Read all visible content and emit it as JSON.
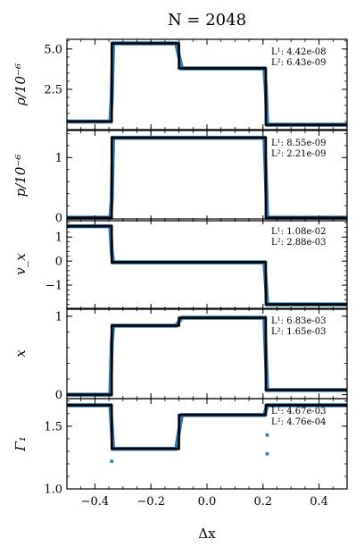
{
  "chart_data": {
    "type": "line",
    "title": "N = 2048",
    "xlabel": "Δx",
    "xlim": [
      -0.5,
      0.5
    ],
    "xticks": [
      -0.4,
      -0.2,
      0.0,
      0.2,
      0.4
    ],
    "xtick_labels": [
      "−0.4",
      "−0.2",
      "0.0",
      "0.2",
      "0.4"
    ],
    "legend": "none",
    "grid": false,
    "colors": {
      "reference": "#000000",
      "numerical": "#2878b5"
    },
    "panels": [
      {
        "ylabel": "ρ/10⁻⁶",
        "ylim": [
          0,
          5.6
        ],
        "yticks": [
          2.5,
          5.0
        ],
        "ytick_labels": [
          "2.5",
          "5.0"
        ],
        "reference": {
          "x": [
            -0.5,
            -0.34,
            -0.34,
            -0.1,
            -0.1,
            0.21,
            0.21,
            0.5
          ],
          "y": [
            0.5,
            0.5,
            5.35,
            5.35,
            3.8,
            3.8,
            0.3,
            0.3
          ]
        },
        "numerical": {
          "x": [
            -0.5,
            -0.345,
            -0.34,
            -0.335,
            -0.11,
            -0.09,
            0.205,
            0.21,
            0.215,
            0.5
          ],
          "y": [
            0.5,
            0.5,
            2.0,
            5.35,
            5.35,
            3.8,
            3.8,
            2.5,
            0.3,
            0.3
          ]
        },
        "errors": {
          "L1": "4.42e-08",
          "L2": "6.43e-09"
        }
      },
      {
        "ylabel": "p/10⁻⁶",
        "ylim": [
          -0.05,
          1.45
        ],
        "yticks": [
          0,
          1
        ],
        "ytick_labels": [
          "0",
          "1"
        ],
        "reference": {
          "x": [
            -0.5,
            -0.34,
            -0.34,
            0.21,
            0.21,
            0.5
          ],
          "y": [
            0.0,
            0.0,
            1.33,
            1.33,
            0.0,
            0.0
          ]
        },
        "numerical": {
          "x": [
            -0.5,
            -0.345,
            -0.34,
            -0.335,
            0.205,
            0.21,
            0.215,
            0.5
          ],
          "y": [
            0.0,
            0.0,
            0.3,
            1.33,
            1.33,
            0.7,
            0.0,
            0.0
          ]
        },
        "errors": {
          "L1": "8.55e-09",
          "L2": "2.21e-09"
        }
      },
      {
        "ylabel": "v_x",
        "ylim": [
          -2.0,
          1.75
        ],
        "yticks": [
          -1,
          0,
          1
        ],
        "ytick_labels": [
          "−1",
          "0",
          "1"
        ],
        "reference": {
          "x": [
            -0.5,
            -0.34,
            -0.34,
            0.21,
            0.21,
            0.5
          ],
          "y": [
            1.45,
            1.45,
            -0.05,
            -0.05,
            -1.8,
            -1.8
          ]
        },
        "numerical": {
          "x": [
            -0.5,
            -0.345,
            -0.34,
            -0.335,
            0.205,
            0.21,
            0.215,
            0.5
          ],
          "y": [
            1.45,
            1.45,
            0.4,
            -0.05,
            -0.05,
            -0.9,
            -1.8,
            -1.8
          ]
        },
        "errors": {
          "L1": "1.08e-02",
          "L2": "2.88e-03"
        }
      },
      {
        "ylabel": "x",
        "ylim": [
          -0.05,
          1.1
        ],
        "yticks": [
          0,
          1
        ],
        "ytick_labels": [
          "0",
          "1"
        ],
        "reference": {
          "x": [
            -0.5,
            -0.34,
            -0.34,
            -0.1,
            -0.1,
            0.21,
            0.21,
            0.5
          ],
          "y": [
            0.0,
            0.0,
            0.88,
            0.88,
            0.98,
            0.98,
            0.06,
            0.06
          ]
        },
        "numerical": {
          "x": [
            -0.5,
            -0.345,
            -0.34,
            -0.335,
            -0.11,
            -0.09,
            0.205,
            0.21,
            0.215,
            0.5
          ],
          "y": [
            0.0,
            0.0,
            0.65,
            0.88,
            0.88,
            0.98,
            0.98,
            0.5,
            0.06,
            0.06
          ]
        },
        "errors": {
          "L1": "6.83e-03",
          "L2": "1.65e-03"
        }
      },
      {
        "ylabel": "Γ₁",
        "ylim": [
          1.0,
          1.72
        ],
        "yticks": [
          1.0,
          1.5
        ],
        "ytick_labels": [
          "1.0",
          "1.5"
        ],
        "reference": {
          "x": [
            -0.5,
            -0.34,
            -0.34,
            -0.1,
            -0.1,
            0.21,
            0.21,
            0.5
          ],
          "y": [
            1.667,
            1.667,
            1.32,
            1.32,
            1.59,
            1.59,
            1.667,
            1.667
          ]
        },
        "numerical": {
          "x": [
            -0.5,
            -0.345,
            -0.335,
            -0.11,
            -0.09,
            0.205,
            0.215,
            0.5
          ],
          "y": [
            1.667,
            1.667,
            1.32,
            1.32,
            1.59,
            1.59,
            1.667,
            1.667
          ]
        },
        "outliers": {
          "x": [
            -0.34,
            0.215,
            0.215
          ],
          "y": [
            1.22,
            1.43,
            1.28
          ]
        },
        "errors": {
          "L1": "4.67e-03",
          "L2": "4.76e-04"
        }
      }
    ]
  }
}
